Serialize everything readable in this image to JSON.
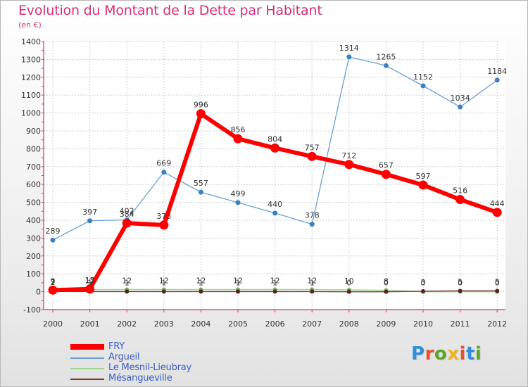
{
  "title": "Evolution du Montant de la Dette par Habitant",
  "unit": "(en €)",
  "brand": {
    "text": "Proxiti",
    "letter_colors": [
      "#2e8fdc",
      "#e94f2b",
      "#5ba726",
      "#f2b41b",
      "#e94f2b",
      "#2e8fdc",
      "#5ba726"
    ]
  },
  "chart_data": {
    "type": "line",
    "title": "Evolution du Montant de la Dette par Habitant",
    "ylabel": "(en €)",
    "xlabel": "",
    "ylim": [
      -100,
      1400
    ],
    "y_ticks": [
      -100,
      0,
      100,
      200,
      300,
      400,
      500,
      600,
      700,
      800,
      900,
      1000,
      1100,
      1200,
      1300,
      1400
    ],
    "x": [
      "2000",
      "2001",
      "2002",
      "2003",
      "2004",
      "2005",
      "2006",
      "2007",
      "2008",
      "2009",
      "2010",
      "2011",
      "2012"
    ],
    "grid": true,
    "legend_position": "bottom-left",
    "series": [
      {
        "name": "FRY",
        "color": "#ff0000",
        "values": [
          9,
          15,
          384,
          373,
          996,
          856,
          804,
          757,
          712,
          657,
          597,
          516,
          444
        ],
        "labels": [
          "9",
          "15",
          "384",
          "373",
          "996",
          "856",
          "804",
          "757",
          "712",
          "657",
          "597",
          "516",
          "444"
        ]
      },
      {
        "name": "Argueil",
        "color": "#6a9fd6",
        "values": [
          289,
          397,
          402,
          669,
          557,
          499,
          440,
          378,
          1314,
          1265,
          1152,
          1034,
          1184
        ],
        "labels": [
          "289",
          "397",
          "402",
          "669",
          "557",
          "499",
          "440",
          "378",
          "1314",
          "1265",
          "1152",
          "1034",
          "1184"
        ]
      },
      {
        "name": "Le Mesnil-Lieubray",
        "color": "#9ed98b",
        "values": [
          7,
          12,
          12,
          12,
          12,
          12,
          12,
          12,
          10,
          8,
          0,
          0,
          0
        ],
        "labels": [
          "7",
          "12",
          "12",
          "12",
          "12",
          "12",
          "12",
          "12",
          "10",
          "8",
          "0",
          "0",
          "0"
        ]
      },
      {
        "name": "Mésangueville",
        "color": "#7a3a3a",
        "values": [
          2,
          1,
          1,
          1,
          1,
          1,
          1,
          1,
          0,
          0,
          3,
          5,
          5
        ],
        "labels": [
          "2",
          "1",
          "1",
          "1",
          "1",
          "1",
          "1",
          "1",
          "0",
          "0",
          "3",
          "5",
          "5"
        ]
      }
    ]
  }
}
